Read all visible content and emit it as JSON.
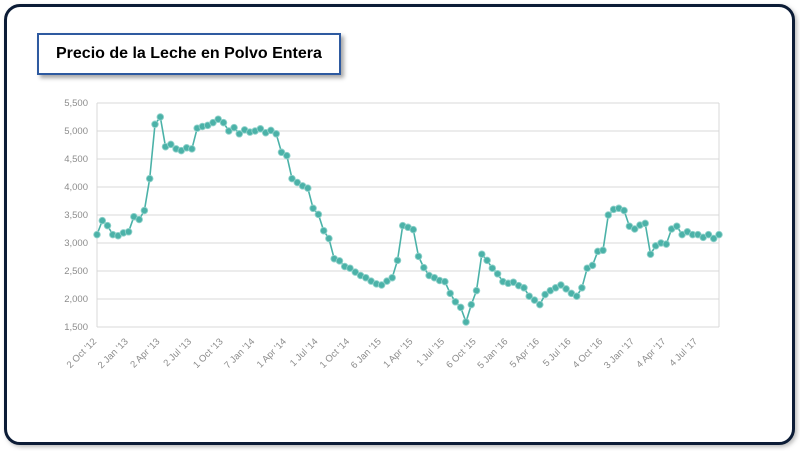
{
  "title": "Precio de la Leche en Polvo Entera",
  "colors": {
    "frame_border": "#0c1c36",
    "title_box_border": "#2e5aa0",
    "background": "#ffffff"
  },
  "chart_data": {
    "type": "line",
    "title": "Precio de la Leche en Polvo Entera",
    "xlabel": "",
    "ylabel": "",
    "grid": "horizontal",
    "legend": "none",
    "ylim": [
      1500,
      5500
    ],
    "y_ticks": [
      5500,
      5000,
      4500,
      4000,
      3500,
      3000,
      2500,
      2000,
      1500
    ],
    "y_tick_labels": [
      "5,500",
      "5,000",
      "4,500",
      "4,000",
      "3,500",
      "3,000",
      "2,500",
      "2,000",
      "1,500"
    ],
    "x_tick_labels": [
      "2 Oct '12",
      "2 Jan '13",
      "2 Apr '13",
      "2 Jul '13",
      "1 Oct '13",
      "7 Jan '14",
      "1 Apr '14",
      "1 Jul '14",
      "1 Oct '14",
      "6 Jan '15",
      "1 Apr '15",
      "1 Jul '15",
      "6 Oct '15",
      "5 Jan '16",
      "5 Apr '16",
      "5 Jul '16",
      "4 Oct '16",
      "3 Jan '17",
      "4 Apr '17",
      "4 Jul '17"
    ],
    "x_tick_every": 6,
    "values": [
      3150,
      3400,
      3310,
      3150,
      3130,
      3180,
      3200,
      3470,
      3420,
      3580,
      4150,
      5120,
      5250,
      4720,
      4760,
      4680,
      4650,
      4700,
      4680,
      5050,
      5080,
      5100,
      5150,
      5210,
      5150,
      5000,
      5060,
      4950,
      5020,
      4980,
      5000,
      5040,
      4970,
      5010,
      4950,
      4620,
      4560,
      4150,
      4080,
      4020,
      3980,
      3620,
      3510,
      3220,
      3080,
      2720,
      2680,
      2580,
      2550,
      2480,
      2420,
      2380,
      2320,
      2270,
      2250,
      2320,
      2380,
      2690,
      3310,
      3280,
      3240,
      2760,
      2560,
      2420,
      2380,
      2330,
      2310,
      2100,
      1950,
      1850,
      1590,
      1900,
      2150,
      2800,
      2690,
      2550,
      2450,
      2310,
      2280,
      2300,
      2240,
      2200,
      2050,
      1980,
      1900,
      2080,
      2150,
      2200,
      2250,
      2180,
      2100,
      2050,
      2200,
      2550,
      2600,
      2850,
      2870,
      3500,
      3600,
      3620,
      3580,
      3300,
      3250,
      3320,
      3350,
      2800,
      2950,
      3000,
      2980,
      3250,
      3300,
      3150,
      3200,
      3150,
      3150,
      3100,
      3150,
      3080,
      3150
    ],
    "colors": {
      "line": "#4bb2a8",
      "marker": "#4bb2a8",
      "marker_edge": "#8fd1ca",
      "grid": "#d9d9d9",
      "axis_text": "#8c8c8c"
    }
  }
}
